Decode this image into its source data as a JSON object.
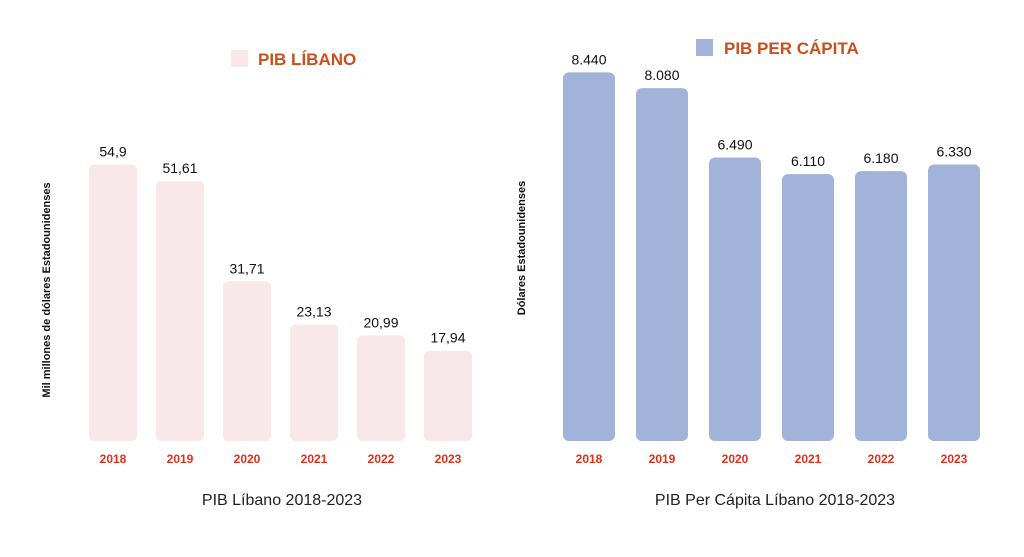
{
  "colors": {
    "left_bar": "#f8e8ea",
    "right_bar": "#a2b3da",
    "legend_text": "#c9501c",
    "category_text": "#e02f1a"
  },
  "chart_data": [
    {
      "type": "bar",
      "legend": "PIB LÍBANO",
      "ylabel": "Mil millones de dólares Estadounidenses",
      "caption": "PIB Líbano 2018-2023",
      "categories": [
        "2018",
        "2019",
        "2020",
        "2021",
        "2022",
        "2023"
      ],
      "values": [
        54.9,
        51.61,
        31.71,
        23.13,
        20.99,
        17.94
      ],
      "value_labels": [
        "54,9",
        "51,61",
        "31,71",
        "23,13",
        "20,99",
        "17,94"
      ],
      "ylim": [
        0,
        60
      ],
      "grid": false,
      "legend_position": "top-center"
    },
    {
      "type": "bar",
      "legend": "PIB PER CÁPITA",
      "ylabel": "Dólares Estadounidenses",
      "caption": "PIB Per Cápita Líbano 2018-2023",
      "categories": [
        "2018",
        "2019",
        "2020",
        "2021",
        "2022",
        "2023"
      ],
      "values": [
        8440,
        8080,
        6490,
        6110,
        6180,
        6330
      ],
      "value_labels": [
        "8.440",
        "8.080",
        "6.490",
        "6.110",
        "6.180",
        "6.330"
      ],
      "ylim": [
        0,
        8700
      ],
      "grid": false,
      "legend_position": "top-center"
    }
  ]
}
